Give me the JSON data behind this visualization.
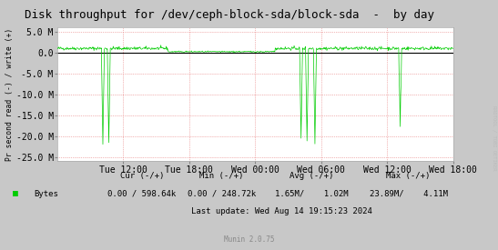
{
  "title": "Disk throughput for /dev/ceph-block-sda/block-sda  -  by day",
  "ylabel": "Pr second read (-) / write (+)",
  "background_color": "#c8c8c8",
  "plot_bg_color": "#ffffff",
  "grid_color": "#e05050",
  "line_color": "#00cc00",
  "zero_line_color": "#000000",
  "ylim": [
    -26000000,
    6000000
  ],
  "yticks": [
    5000000,
    0,
    -5000000,
    -10000000,
    -15000000,
    -20000000,
    -25000000
  ],
  "ytick_labels": [
    "5.0 M",
    "0.0",
    "-5.0 M",
    "-10.0 M",
    "-15.0 M",
    "-20.0 M",
    "-25.0 M"
  ],
  "xtick_labels": [
    "Tue 12:00",
    "Tue 18:00",
    "Wed 00:00",
    "Wed 06:00",
    "Wed 12:00",
    "Wed 18:00"
  ],
  "title_fontsize": 9,
  "tick_fontsize": 7,
  "legend_label": "Bytes",
  "legend_color": "#00cc00",
  "cur_label": "Cur (-/+)",
  "min_label": "Min (-/+)",
  "avg_label": "Avg (-/+)",
  "max_label": "Max (-/+)",
  "cur_val": "0.00 / 598.64k",
  "min_val": "0.00 / 248.72k",
  "avg_val": "1.65M/    1.02M",
  "max_val": "23.89M/    4.11M",
  "last_update": "Last update: Wed Aug 14 19:15:23 2024",
  "munin_label": "Munin 2.0.75",
  "rrdtool_label": "RRDTOOL / TOBI OETIKER",
  "n_points": 800
}
